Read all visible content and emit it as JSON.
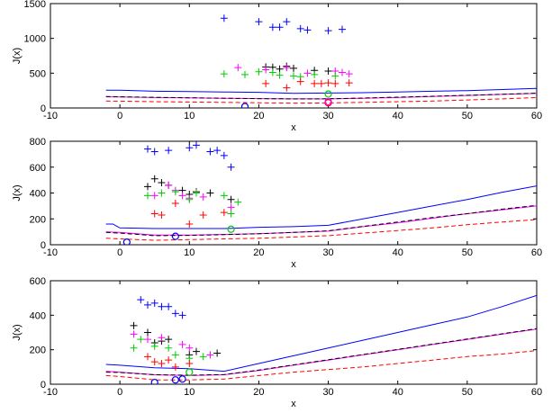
{
  "chart_data": [
    {
      "type": "line",
      "xlabel": "x",
      "ylabel": "J(x)",
      "xlim": [
        -10,
        60
      ],
      "ylim": [
        0,
        1500
      ],
      "xticks": [
        -10,
        0,
        10,
        20,
        30,
        40,
        50,
        60
      ],
      "yticks": [
        0,
        500,
        1000,
        1500
      ],
      "series": [
        {
          "style": "solid",
          "color": "#0000ff",
          "x": [
            -2,
            0,
            5,
            10,
            15,
            20,
            25,
            30,
            35,
            40,
            45,
            50,
            55,
            60
          ],
          "y": [
            255,
            255,
            240,
            235,
            230,
            225,
            210,
            215,
            220,
            230,
            240,
            250,
            265,
            280
          ]
        },
        {
          "style": "solid",
          "color": "#ff00ff",
          "x": [
            -2,
            0,
            5,
            10,
            15,
            20,
            25,
            30,
            35,
            40,
            45,
            50,
            55,
            60
          ],
          "y": [
            160,
            158,
            150,
            145,
            140,
            135,
            130,
            130,
            140,
            150,
            165,
            180,
            195,
            210
          ]
        },
        {
          "style": "dashed",
          "color": "#000000",
          "x": [
            -2,
            0,
            5,
            10,
            15,
            20,
            25,
            30,
            35,
            40,
            45,
            50,
            55,
            60
          ],
          "y": [
            165,
            160,
            152,
            146,
            140,
            134,
            130,
            132,
            142,
            155,
            168,
            182,
            196,
            212
          ]
        },
        {
          "style": "dashed",
          "color": "#ff0000",
          "x": [
            -2,
            0,
            5,
            10,
            15,
            20,
            25,
            30,
            35,
            40,
            45,
            50,
            55,
            60
          ],
          "y": [
            100,
            98,
            90,
            85,
            80,
            75,
            70,
            72,
            80,
            90,
            100,
            115,
            130,
            150
          ]
        }
      ],
      "scatter": [
        {
          "color": "#0000ff",
          "points": [
            [
              15,
              1290
            ],
            [
              20,
              1240
            ],
            [
              22,
              1160
            ],
            [
              23,
              1160
            ],
            [
              24,
              1240
            ],
            [
              26,
              1140
            ],
            [
              27,
              1120
            ],
            [
              30,
              1110
            ],
            [
              32,
              1130
            ]
          ]
        },
        {
          "color": "#000000",
          "points": [
            [
              21,
              590
            ],
            [
              22,
              585
            ],
            [
              23,
              560
            ],
            [
              24,
              600
            ],
            [
              25,
              570
            ],
            [
              28,
              540
            ],
            [
              30,
              530
            ]
          ]
        },
        {
          "color": "#ff00ff",
          "points": [
            [
              17,
              580
            ],
            [
              21,
              550
            ],
            [
              24,
              580
            ],
            [
              27,
              500
            ],
            [
              31,
              530
            ],
            [
              32,
              510
            ],
            [
              33,
              490
            ]
          ]
        },
        {
          "color": "#00cc00",
          "points": [
            [
              15,
              490
            ],
            [
              18,
              480
            ],
            [
              20,
              520
            ],
            [
              22,
              510
            ],
            [
              23,
              470
            ],
            [
              25,
              460
            ],
            [
              26,
              450
            ],
            [
              28,
              480
            ],
            [
              31,
              460
            ]
          ]
        },
        {
          "color": "#ff0000",
          "points": [
            [
              21,
              350
            ],
            [
              24,
              290
            ],
            [
              26,
              380
            ],
            [
              28,
              350
            ],
            [
              29,
              350
            ],
            [
              30,
              360
            ],
            [
              31,
              350
            ],
            [
              33,
              360
            ]
          ]
        }
      ],
      "markers": [
        {
          "color": "#0000ff",
          "x": 18,
          "y": 20
        },
        {
          "color": "#00cc00",
          "x": 30,
          "y": 200
        },
        {
          "color": "#0000ff",
          "x": 30,
          "y": 80
        },
        {
          "color": "#ff0000",
          "x": 30,
          "y": 75
        },
        {
          "color": "#ff00ff",
          "x": 30,
          "y": 90
        }
      ]
    },
    {
      "type": "line",
      "xlabel": "x",
      "ylabel": "J(x)",
      "xlim": [
        -10,
        60
      ],
      "ylim": [
        0,
        800
      ],
      "xticks": [
        -10,
        0,
        10,
        20,
        30,
        40,
        50,
        60
      ],
      "yticks": [
        0,
        200,
        400,
        600,
        800
      ],
      "series": [
        {
          "style": "solid",
          "color": "#0000ff",
          "x": [
            -2,
            -1,
            0,
            5,
            10,
            15,
            20,
            25,
            30,
            35,
            40,
            45,
            50,
            55,
            60
          ],
          "y": [
            160,
            160,
            130,
            125,
            125,
            125,
            135,
            140,
            150,
            200,
            250,
            300,
            350,
            405,
            455
          ]
        },
        {
          "style": "solid",
          "color": "#ff00ff",
          "x": [
            -2,
            0,
            5,
            10,
            15,
            20,
            25,
            30,
            35,
            40,
            45,
            50,
            55,
            60
          ],
          "y": [
            100,
            95,
            75,
            75,
            80,
            85,
            95,
            105,
            140,
            170,
            205,
            240,
            270,
            300
          ]
        },
        {
          "style": "dashed",
          "color": "#000000",
          "x": [
            -2,
            0,
            5,
            10,
            15,
            20,
            25,
            30,
            35,
            40,
            45,
            50,
            55,
            60
          ],
          "y": [
            95,
            90,
            70,
            72,
            78,
            85,
            95,
            108,
            142,
            175,
            210,
            240,
            275,
            305
          ]
        },
        {
          "style": "dashed",
          "color": "#ff0000",
          "x": [
            -2,
            0,
            5,
            10,
            15,
            20,
            25,
            30,
            35,
            40,
            45,
            50,
            55,
            60
          ],
          "y": [
            50,
            45,
            35,
            40,
            45,
            50,
            60,
            70,
            90,
            110,
            130,
            155,
            175,
            195
          ]
        }
      ],
      "scatter": [
        {
          "color": "#0000ff",
          "points": [
            [
              4,
              740
            ],
            [
              5,
              720
            ],
            [
              7,
              730
            ],
            [
              10,
              750
            ],
            [
              11,
              770
            ],
            [
              13,
              720
            ],
            [
              14,
              730
            ],
            [
              15,
              690
            ],
            [
              16,
              600
            ]
          ]
        },
        {
          "color": "#000000",
          "points": [
            [
              4,
              450
            ],
            [
              5,
              510
            ],
            [
              6,
              480
            ],
            [
              7,
              460
            ],
            [
              9,
              420
            ],
            [
              10,
              390
            ],
            [
              11,
              410
            ],
            [
              13,
              400
            ],
            [
              16,
              350
            ]
          ]
        },
        {
          "color": "#ff00ff",
          "points": [
            [
              5,
              380
            ],
            [
              7,
              460
            ],
            [
              8,
              420
            ],
            [
              9,
              380
            ],
            [
              10,
              360
            ],
            [
              12,
              370
            ],
            [
              16,
              290
            ]
          ]
        },
        {
          "color": "#00cc00",
          "points": [
            [
              4,
              380
            ],
            [
              6,
              400
            ],
            [
              8,
              410
            ],
            [
              10,
              350
            ],
            [
              11,
              400
            ],
            [
              15,
              380
            ],
            [
              16,
              240
            ],
            [
              17,
              330
            ]
          ]
        },
        {
          "color": "#ff0000",
          "points": [
            [
              5,
              240
            ],
            [
              6,
              230
            ],
            [
              8,
              320
            ],
            [
              10,
              160
            ],
            [
              12,
              230
            ],
            [
              15,
              250
            ]
          ]
        }
      ],
      "markers": [
        {
          "color": "#0000ff",
          "x": 1,
          "y": 20
        },
        {
          "color": "#0000ff",
          "x": 8,
          "y": 65
        },
        {
          "color": "#00cc00",
          "x": 16,
          "y": 120
        }
      ]
    },
    {
      "type": "line",
      "xlabel": "x",
      "ylabel": "J(x)",
      "xlim": [
        -10,
        60
      ],
      "ylim": [
        0,
        600
      ],
      "xticks": [
        -10,
        0,
        10,
        20,
        30,
        40,
        50,
        60
      ],
      "yticks": [
        0,
        200,
        400,
        600
      ],
      "series": [
        {
          "style": "solid",
          "color": "#0000ff",
          "x": [
            -2,
            0,
            5,
            10,
            15,
            20,
            25,
            30,
            35,
            40,
            45,
            50,
            55,
            60
          ],
          "y": [
            115,
            110,
            95,
            90,
            75,
            120,
            165,
            210,
            255,
            300,
            345,
            390,
            450,
            515
          ]
        },
        {
          "style": "solid",
          "color": "#ff00ff",
          "x": [
            -2,
            0,
            5,
            10,
            15,
            20,
            25,
            30,
            35,
            40,
            45,
            50,
            55,
            60
          ],
          "y": [
            75,
            70,
            55,
            50,
            55,
            80,
            110,
            140,
            170,
            200,
            230,
            260,
            290,
            320
          ]
        },
        {
          "style": "dashed",
          "color": "#000000",
          "x": [
            -2,
            0,
            5,
            10,
            15,
            20,
            25,
            30,
            35,
            40,
            45,
            50,
            55,
            60
          ],
          "y": [
            70,
            68,
            55,
            52,
            56,
            82,
            112,
            142,
            172,
            202,
            232,
            262,
            292,
            322
          ]
        },
        {
          "style": "dashed",
          "color": "#ff0000",
          "x": [
            -2,
            0,
            5,
            10,
            15,
            20,
            25,
            30,
            35,
            40,
            45,
            50,
            55,
            60
          ],
          "y": [
            50,
            45,
            25,
            25,
            30,
            50,
            70,
            85,
            100,
            120,
            140,
            160,
            175,
            195
          ]
        }
      ],
      "scatter": [
        {
          "color": "#0000ff",
          "points": [
            [
              3,
              490
            ],
            [
              4,
              460
            ],
            [
              5,
              470
            ],
            [
              6,
              450
            ],
            [
              7,
              450
            ],
            [
              8,
              410
            ],
            [
              9,
              400
            ]
          ]
        },
        {
          "color": "#000000",
          "points": [
            [
              2,
              340
            ],
            [
              4,
              300
            ],
            [
              5,
              240
            ],
            [
              6,
              250
            ],
            [
              7,
              260
            ],
            [
              10,
              170
            ],
            [
              11,
              190
            ],
            [
              14,
              180
            ]
          ]
        },
        {
          "color": "#ff00ff",
          "points": [
            [
              2,
              290
            ],
            [
              4,
              260
            ],
            [
              6,
              270
            ],
            [
              9,
              230
            ],
            [
              10,
              210
            ],
            [
              13,
              170
            ]
          ]
        },
        {
          "color": "#00cc00",
          "points": [
            [
              2,
              210
            ],
            [
              3,
              260
            ],
            [
              5,
              220
            ],
            [
              7,
              210
            ],
            [
              8,
              170
            ],
            [
              10,
              150
            ],
            [
              12,
              160
            ]
          ]
        },
        {
          "color": "#ff0000",
          "points": [
            [
              4,
              160
            ],
            [
              5,
              130
            ],
            [
              6,
              120
            ],
            [
              7,
              140
            ],
            [
              8,
              100
            ],
            [
              10,
              120
            ]
          ]
        }
      ],
      "markers": [
        {
          "color": "#0000ff",
          "x": 5,
          "y": 10
        },
        {
          "color": "#0000ff",
          "x": 8,
          "y": 25
        },
        {
          "color": "#0000ff",
          "x": 9,
          "y": 30
        },
        {
          "color": "#00cc00",
          "x": 10,
          "y": 70
        }
      ]
    }
  ]
}
